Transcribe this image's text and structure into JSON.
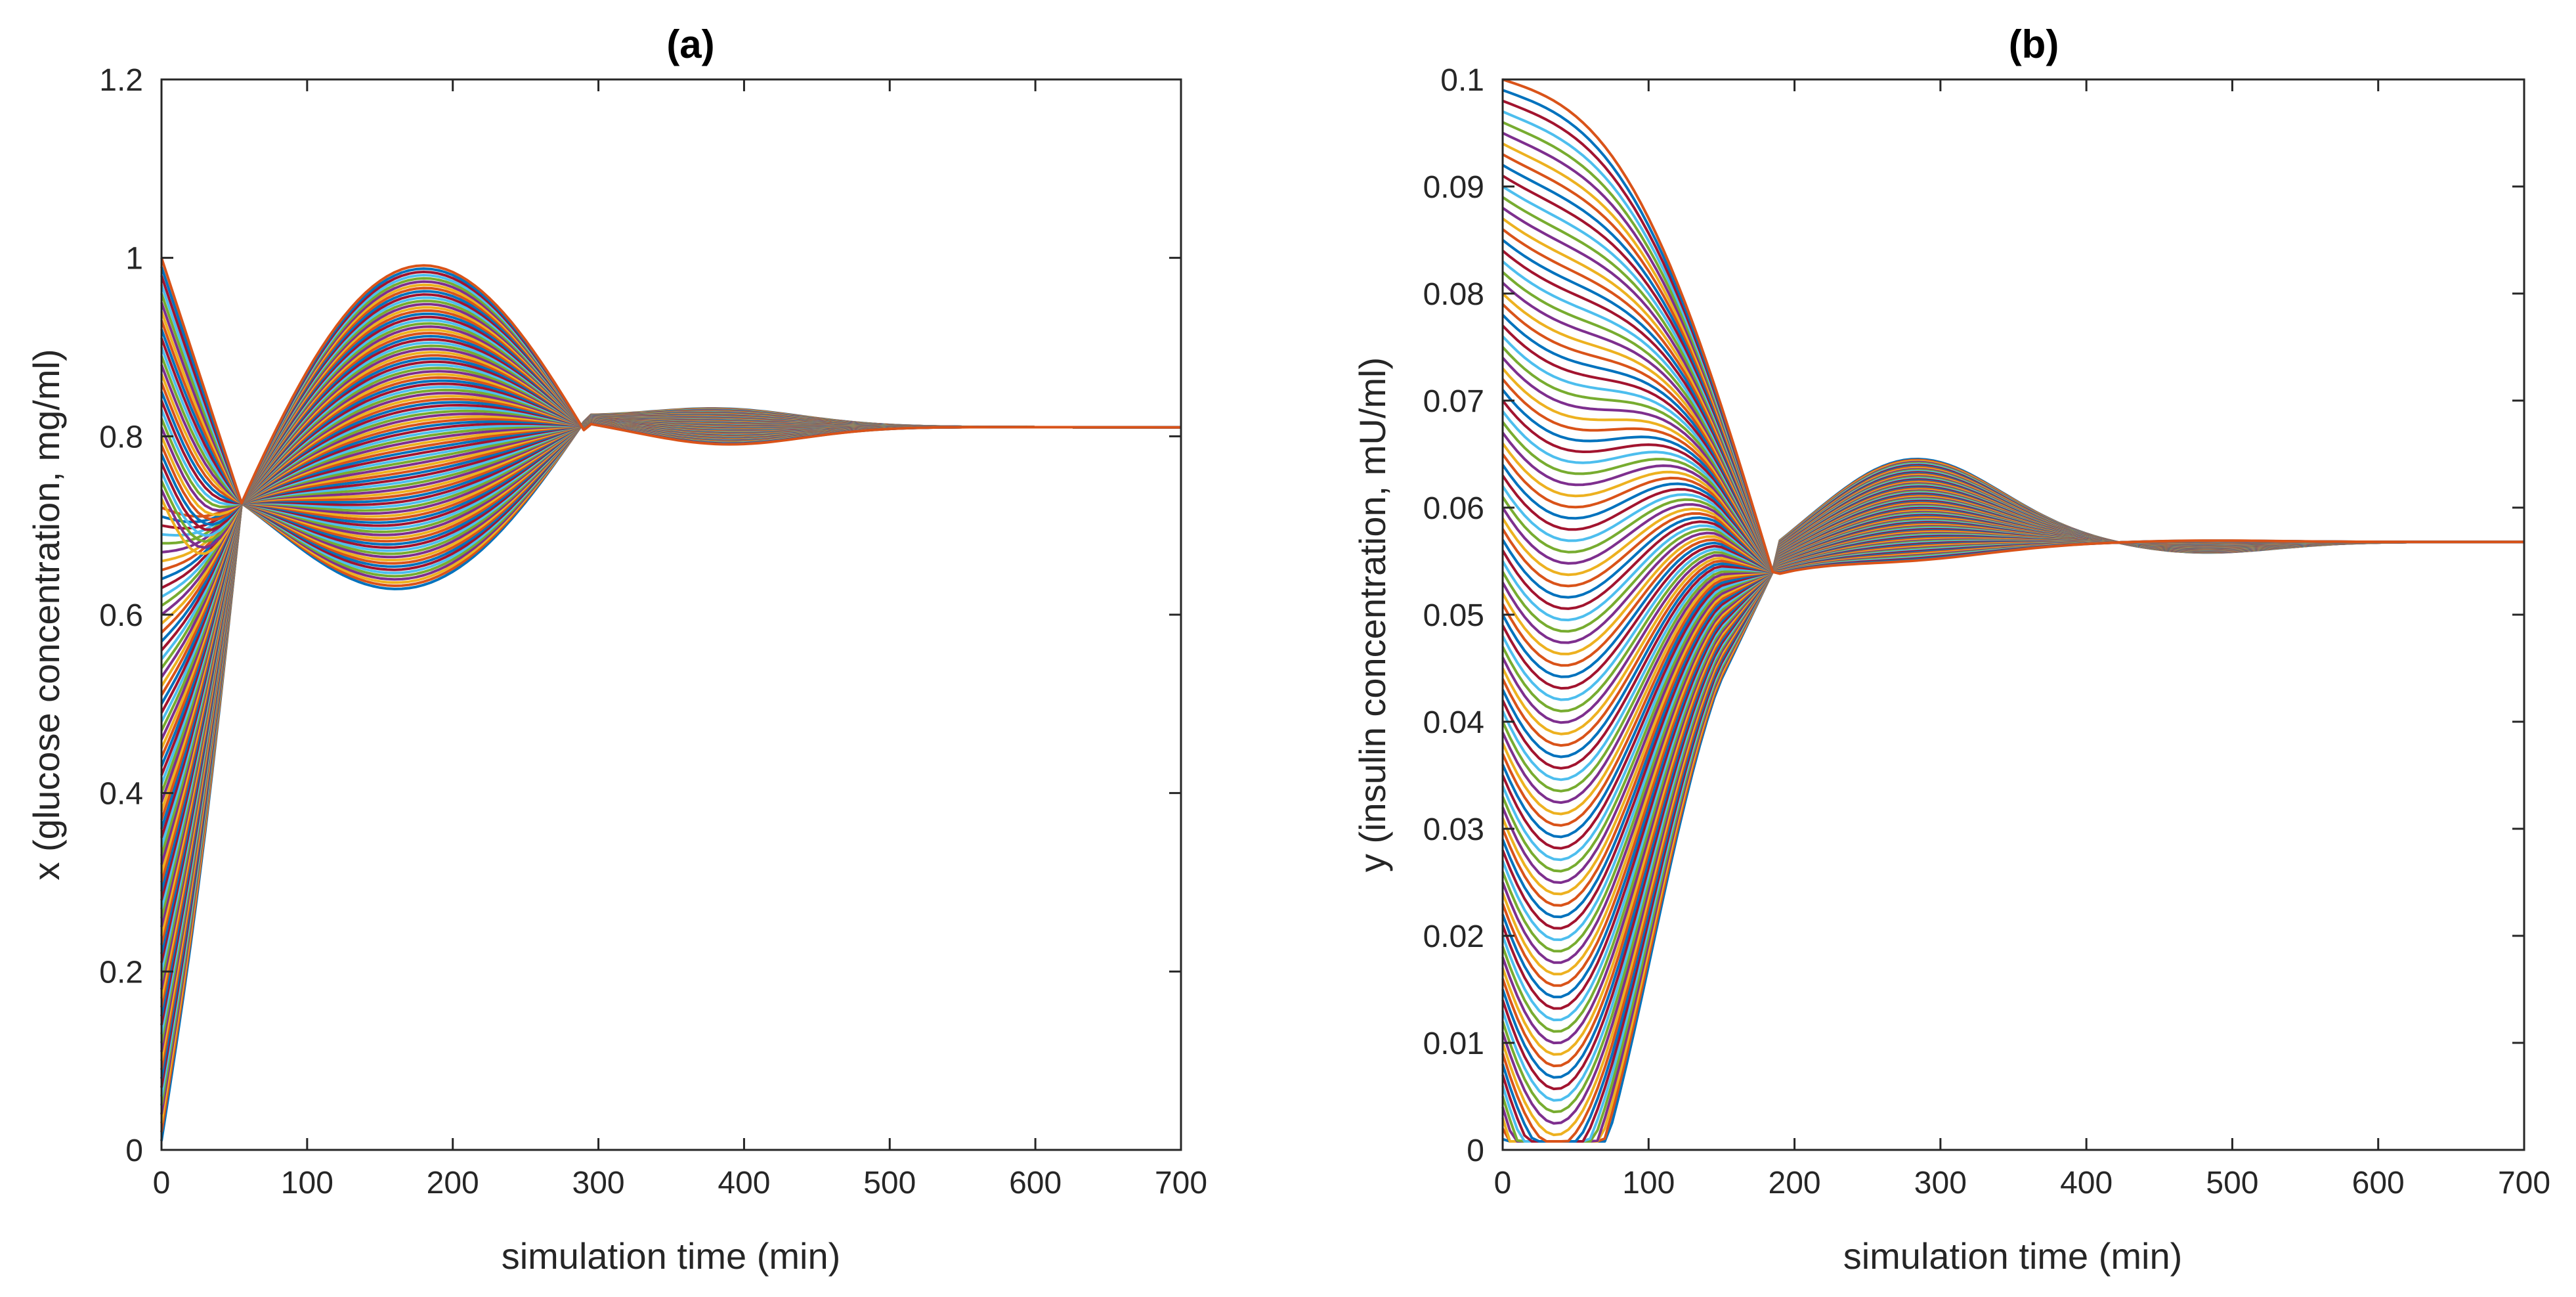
{
  "chart_data": [
    {
      "type": "line",
      "title": "(a)",
      "xlabel": "simulation time (min)",
      "ylabel": "x (glucose concentration, mg/ml)",
      "xlim": [
        0,
        700
      ],
      "ylim": [
        0,
        1.2
      ],
      "xticks": [
        0,
        100,
        200,
        300,
        400,
        500,
        600,
        700
      ],
      "yticks": [
        0,
        0.2,
        0.4,
        0.6,
        0.8,
        1,
        1.2
      ],
      "xtick_labels": [
        "0",
        "100",
        "200",
        "300",
        "400",
        "500",
        "600",
        "700"
      ],
      "ytick_labels": [
        "0",
        "0.2",
        "0.4",
        "0.6",
        "0.8",
        "1",
        "1.2"
      ],
      "series_count": 100,
      "initial_value_range": [
        0.01,
        1.0
      ],
      "converge_point": [
        55,
        0.725
      ],
      "overshoot_peak": [
        170,
        1.0
      ],
      "steady_state": 0.81,
      "grid": false
    },
    {
      "type": "line",
      "title": "(b)",
      "xlabel": "simulation time (min)",
      "ylabel": "y (insulin concentration, mU/ml)",
      "xlim": [
        0,
        700
      ],
      "ylim": [
        0,
        0.1
      ],
      "xticks": [
        0,
        100,
        200,
        300,
        400,
        500,
        600,
        700
      ],
      "yticks": [
        0,
        0.01,
        0.02,
        0.03,
        0.04,
        0.05,
        0.06,
        0.07,
        0.08,
        0.09,
        0.1
      ],
      "xtick_labels": [
        "0",
        "100",
        "200",
        "300",
        "400",
        "500",
        "600",
        "700"
      ],
      "ytick_labels": [
        "0",
        "0.01",
        "0.02",
        "0.03",
        "0.04",
        "0.05",
        "0.06",
        "0.07",
        "0.08",
        "0.09",
        "0.1"
      ],
      "series_count": 100,
      "initial_value_range": [
        0.001,
        0.1
      ],
      "converge_point": [
        185,
        0.054
      ],
      "overshoot_peak": [
        280,
        0.0635
      ],
      "steady_state": 0.0568,
      "grid": false
    }
  ],
  "palette": [
    "#0072bd",
    "#d95319",
    "#edb120",
    "#7e2f8e",
    "#77ac30",
    "#4dbeee",
    "#a2142f"
  ]
}
